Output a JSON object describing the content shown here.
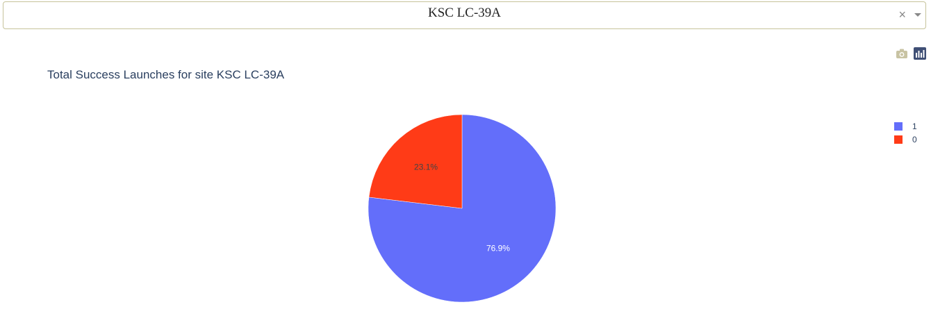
{
  "dropdown": {
    "selected_value": "KSC LC-39A",
    "clear_symbol": "×"
  },
  "modebar": {
    "buttons": [
      {
        "icon": "camera-icon"
      },
      {
        "icon": "plotly-logo-icon"
      }
    ]
  },
  "chart_data": {
    "type": "pie",
    "title": "Total Success Launches for site KSC LC-39A",
    "labels": [
      "1",
      "0"
    ],
    "values": [
      76.9,
      23.1
    ],
    "text": [
      "76.9%",
      "23.1%"
    ],
    "colors": [
      "#636efa",
      "#ff3b17"
    ],
    "text_colors": [
      "#ffffff",
      "#444444"
    ],
    "legend_position": "top-right"
  }
}
